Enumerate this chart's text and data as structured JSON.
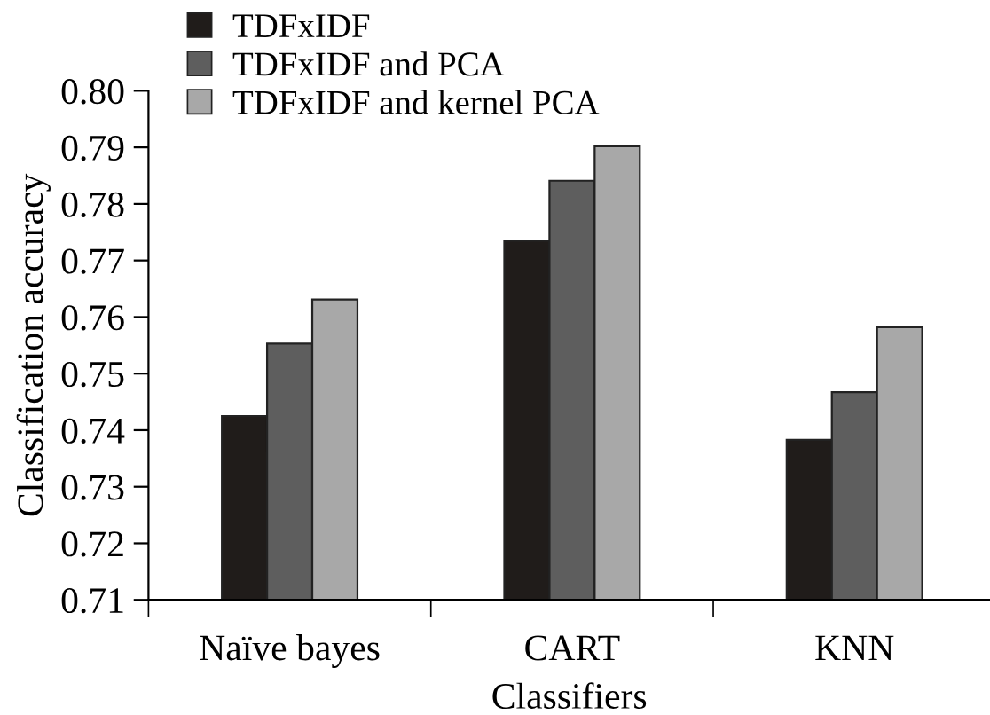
{
  "chart_data": {
    "type": "bar",
    "xlabel": "Classifiers",
    "ylabel": "Classification accuracy",
    "categories": [
      "Naïve bayes",
      "CART",
      "KNN"
    ],
    "series": [
      {
        "name": "TDFxIDF",
        "color": "#201c1a",
        "values": [
          0.7425,
          0.7735,
          0.7383
        ]
      },
      {
        "name": "TDFxIDF and PCA",
        "color": "#5e5e5e",
        "values": [
          0.7553,
          0.7841,
          0.7467
        ]
      },
      {
        "name": "TDFxIDF and kernel PCA",
        "color": "#a8a8a8",
        "values": [
          0.7631,
          0.7902,
          0.7582
        ]
      }
    ],
    "ylim": [
      0.71,
      0.8
    ],
    "yticks": [
      0.71,
      0.72,
      0.73,
      0.74,
      0.75,
      0.76,
      0.77,
      0.78,
      0.79,
      {
        "value": 0.8,
        "label": "0.80"
      }
    ],
    "grid": false,
    "legend": "top left"
  }
}
